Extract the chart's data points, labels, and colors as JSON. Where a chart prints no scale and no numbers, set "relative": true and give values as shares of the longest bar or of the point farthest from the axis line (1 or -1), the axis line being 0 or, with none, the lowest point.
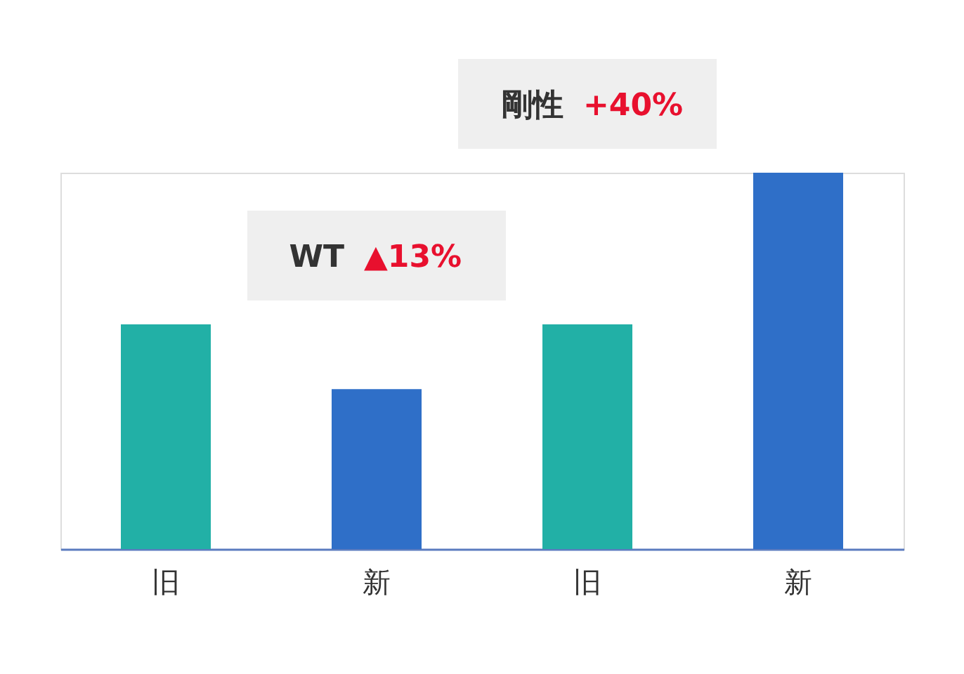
{
  "chart_data": {
    "type": "bar",
    "relative": true,
    "categories": [
      "旧",
      "新",
      "旧",
      "新"
    ],
    "values": [
      0.597,
      0.425,
      0.597,
      1
    ],
    "colors": [
      "#22b0a6",
      "#2f6fc8",
      "#22b0a6",
      "#2f6fc8"
    ],
    "annotations": [
      "WT ▲13%",
      "剛性 +40%"
    ],
    "grid": false
  }
}
